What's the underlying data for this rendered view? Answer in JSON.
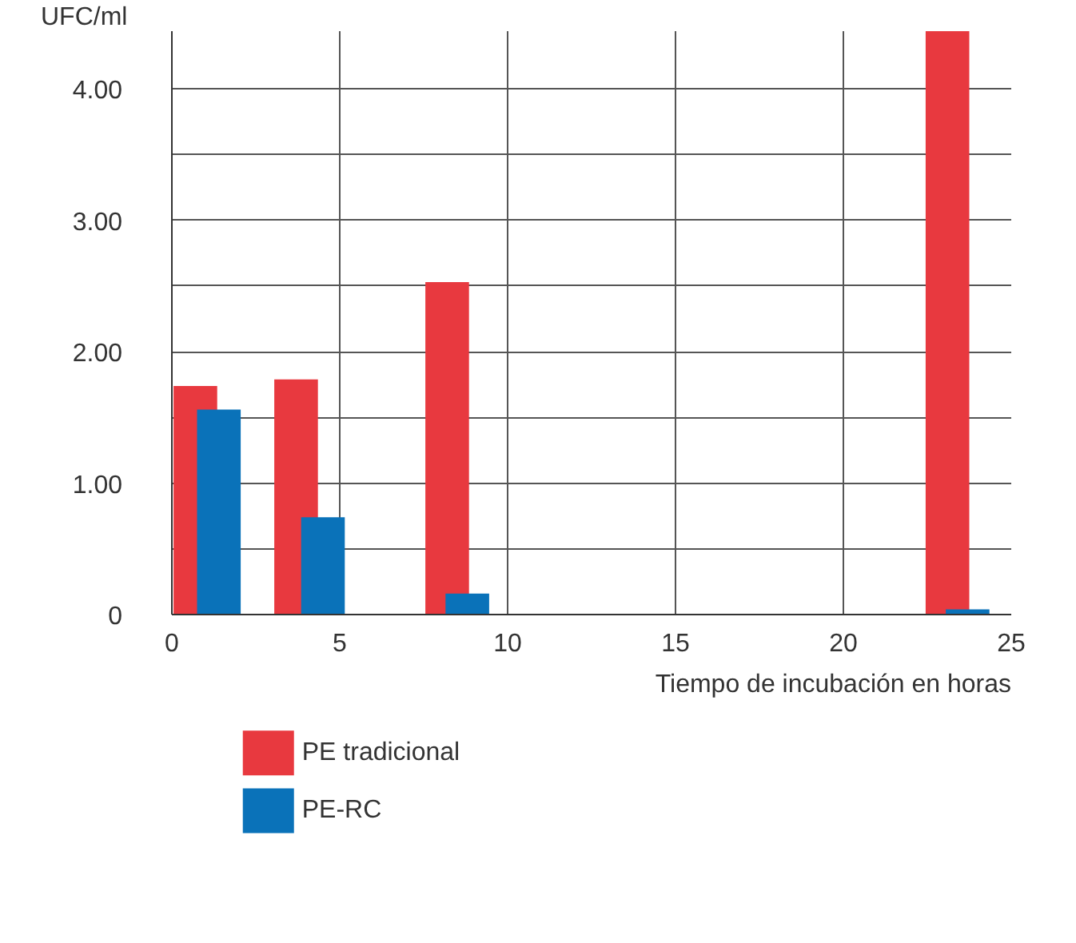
{
  "chart_data": {
    "type": "bar",
    "ylabel": "UFC/ml",
    "xlabel": "Tiempo de incubación en horas",
    "series": [
      {
        "name": "PE tradicional",
        "color": "#e8393f",
        "x": [
          0.7,
          3.7,
          8.2,
          23.1
        ],
        "values": [
          1.74,
          1.79,
          2.53,
          4.44
        ]
      },
      {
        "name": "PE-RC",
        "color": "#0a72b9",
        "x": [
          1.4,
          4.5,
          8.8,
          23.7
        ],
        "values": [
          1.56,
          0.74,
          0.16,
          0.04
        ]
      }
    ],
    "xlim": [
      0,
      25
    ],
    "ylim": [
      0,
      4.44
    ],
    "xticks": [
      0,
      5,
      10,
      15,
      20,
      25
    ],
    "yticks": [
      {
        "value": 0,
        "label": "0"
      },
      {
        "value": 0.5,
        "label": null
      },
      {
        "value": 1,
        "label": "1.00"
      },
      {
        "value": 1.5,
        "label": null
      },
      {
        "value": 2,
        "label": "2.00"
      },
      {
        "value": 2.5,
        "label": null
      },
      {
        "value": 3,
        "label": "3.00"
      },
      {
        "value": 3.5,
        "label": null
      },
      {
        "value": 4,
        "label": "4.00"
      }
    ],
    "grid": true,
    "legend": "bottom left"
  }
}
